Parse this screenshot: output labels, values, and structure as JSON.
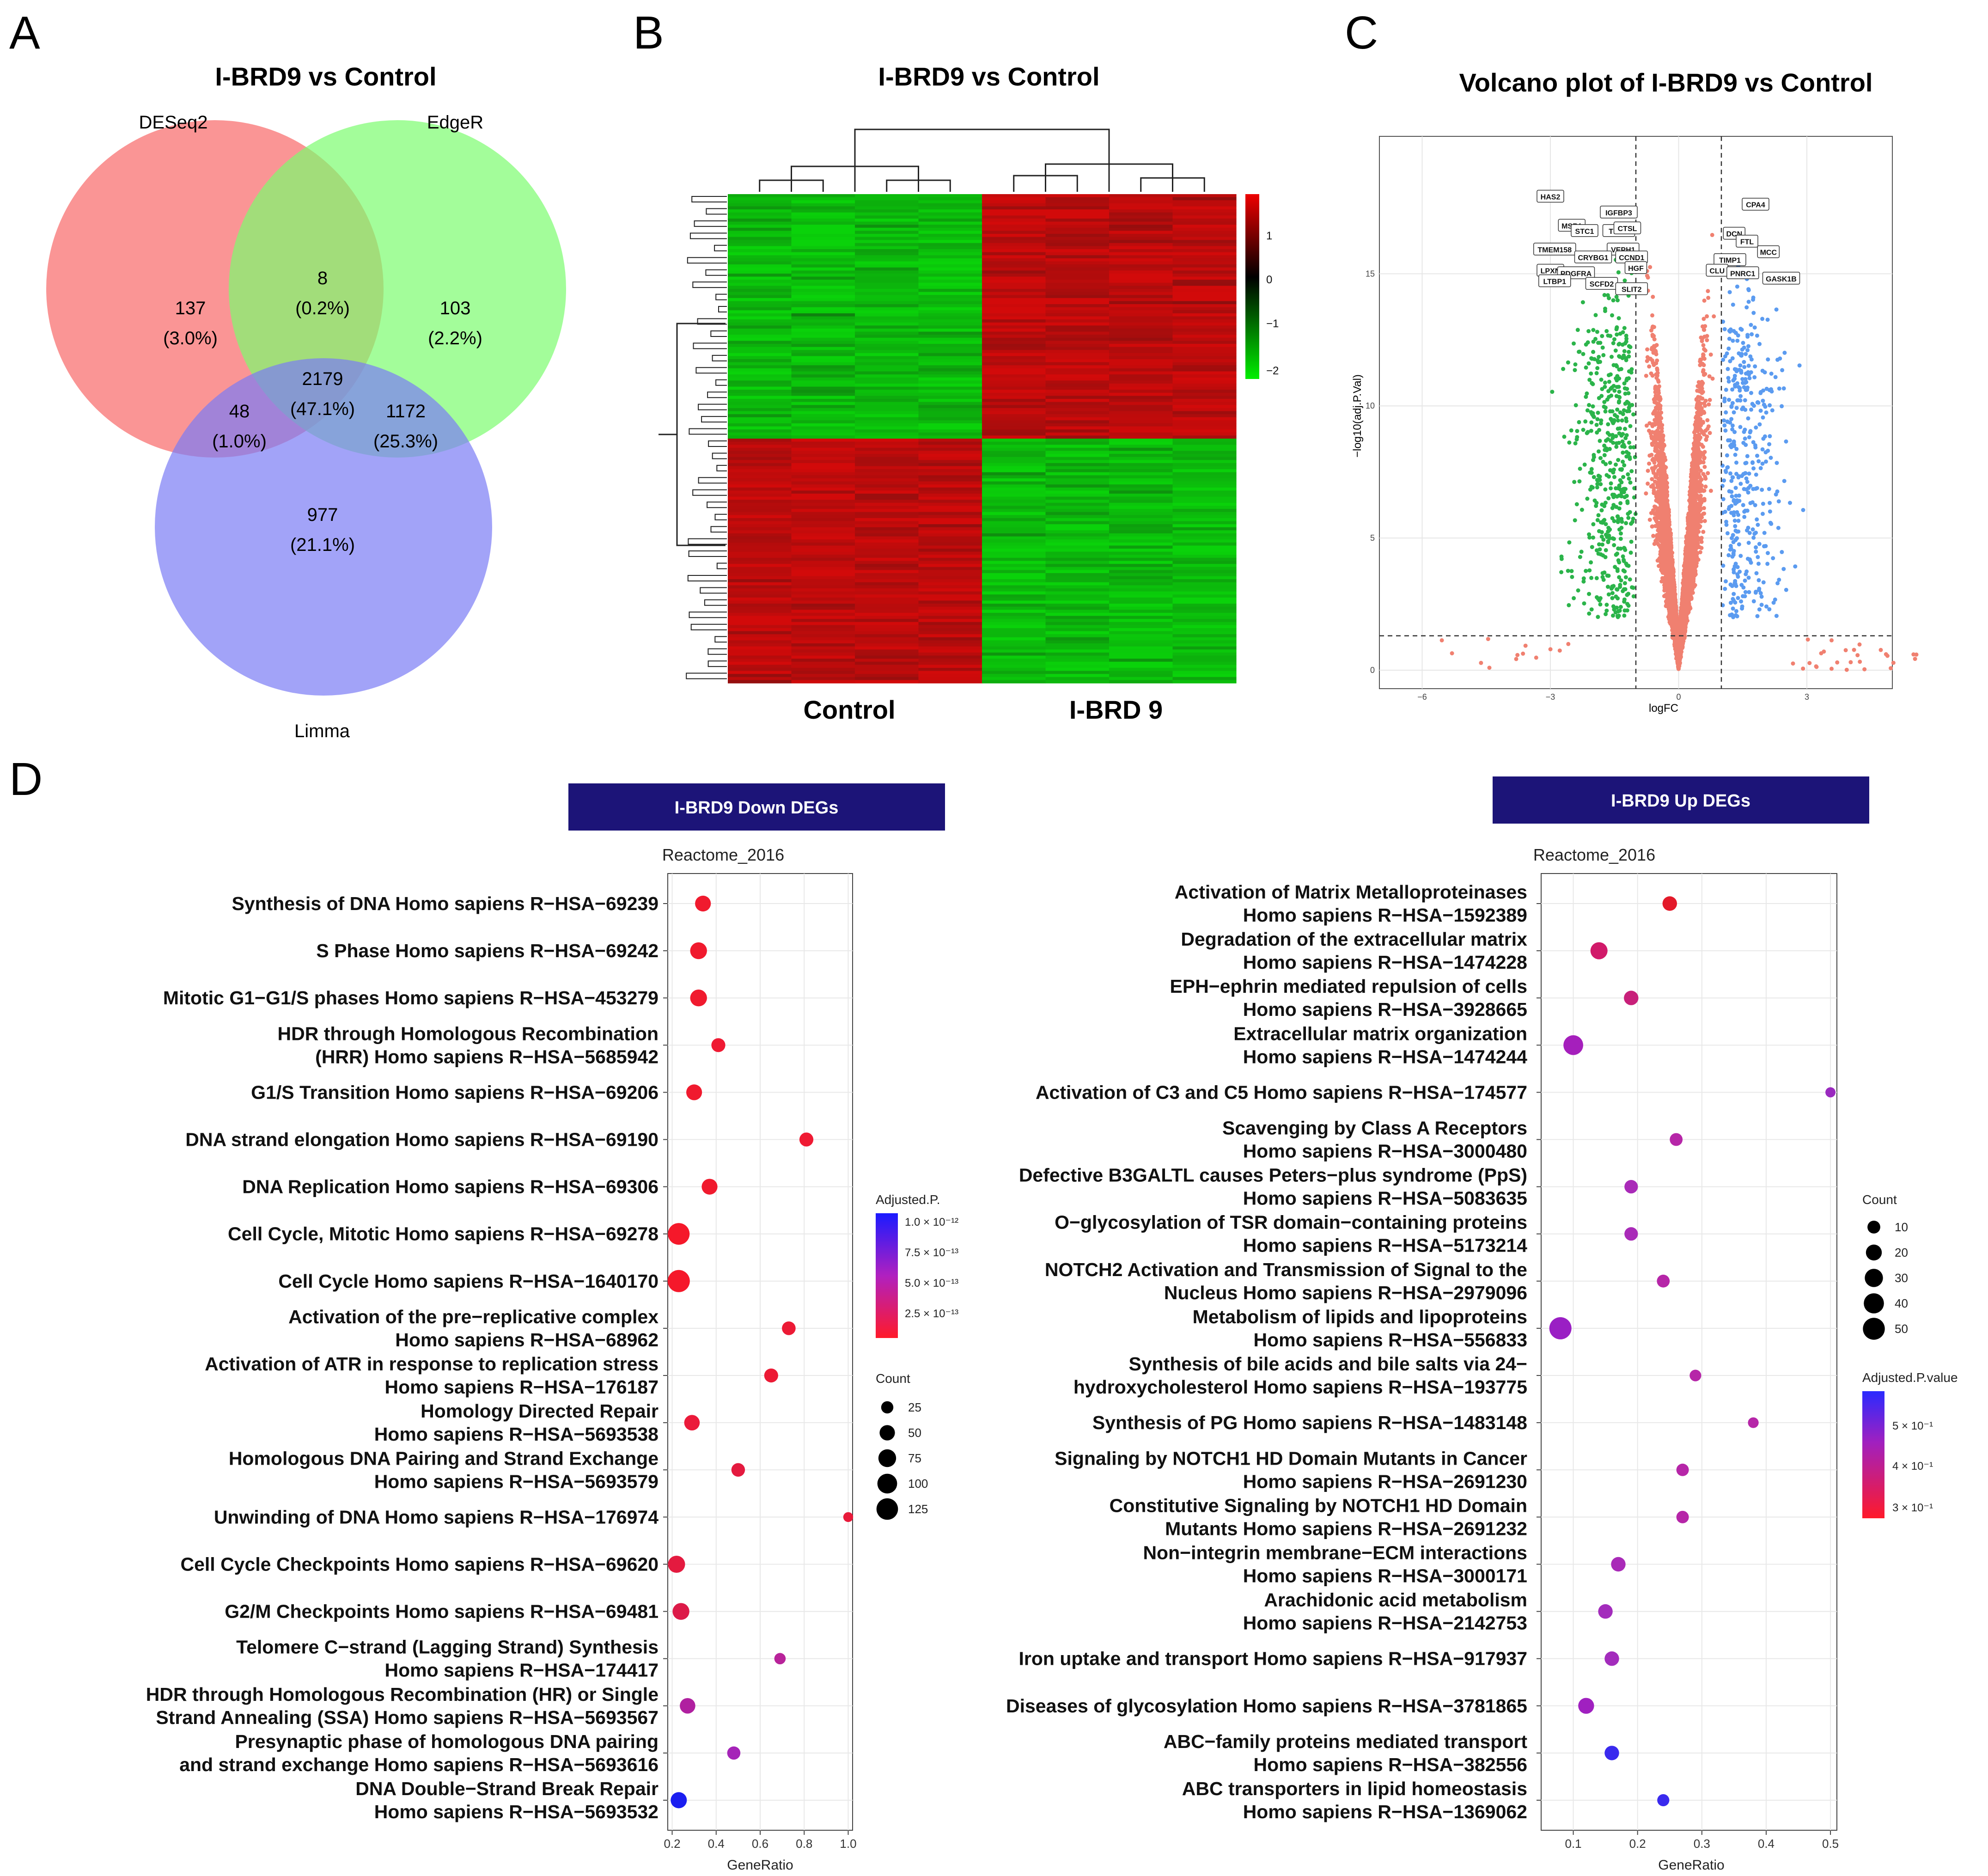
{
  "panel_letters": {
    "a": "A",
    "b": "B",
    "c": "C",
    "d": "D"
  },
  "colors": {
    "red": "#f44336",
    "green": "#2bb44a",
    "blue": "#5b9bf0",
    "salmon": "#f08070",
    "navy": "#1c1478",
    "purple": "#9a21c8",
    "magenta": "#d4177a"
  },
  "chart_data": [
    {
      "type": "venn",
      "title": "I-BRD9 vs Control",
      "sets": [
        {
          "name": "DESeq2",
          "color": "#f87171"
        },
        {
          "name": "EdgeR",
          "color": "#7cfc6f"
        },
        {
          "name": "Limma",
          "color": "#7b7cf5"
        }
      ],
      "regions": [
        {
          "sets": [
            "DESeq2"
          ],
          "count": "137",
          "pct": "(3.0%)"
        },
        {
          "sets": [
            "EdgeR"
          ],
          "count": "103",
          "pct": "(2.2%)"
        },
        {
          "sets": [
            "DESeq2",
            "EdgeR"
          ],
          "count": "8",
          "pct": "(0.2%)"
        },
        {
          "sets": [
            "DESeq2",
            "EdgeR",
            "Limma"
          ],
          "count": "2179",
          "pct": "(47.1%)"
        },
        {
          "sets": [
            "DESeq2",
            "Limma"
          ],
          "count": "48",
          "pct": "(1.0%)"
        },
        {
          "sets": [
            "EdgeR",
            "Limma"
          ],
          "count": "1172",
          "pct": "(25.3%)"
        },
        {
          "sets": [
            "Limma"
          ],
          "count": "977",
          "pct": "(21.1%)"
        }
      ]
    },
    {
      "type": "heatmap",
      "title": "I-BRD9 vs Control",
      "groups": [
        "Control",
        "I-BRD 9"
      ],
      "samples_per_group": 4,
      "clusters": [
        "up in I-BRD9",
        "down in I-BRD9"
      ],
      "color_scale": {
        "ticks": [
          "1",
          "0",
          "−1",
          "−2"
        ],
        "low": "#00ee00",
        "mid": "#000000",
        "high": "#ee0000"
      }
    },
    {
      "type": "scatter",
      "title": "Volcano plot of I-BRD9 vs Control",
      "xlabel": "logFC",
      "ylabel": "−log10(adj.P.Val)",
      "xlim": [
        -7,
        5
      ],
      "ylim": [
        -0.7,
        20.2
      ],
      "xticks": [
        "−6",
        "−3",
        "0",
        "3"
      ],
      "yticks": [
        "0",
        "5",
        "10",
        "15"
      ],
      "thresholds": {
        "logfc": [
          -1,
          1
        ],
        "neglog10p": 1.3
      },
      "labels": [
        {
          "text": "HAS2",
          "x": -3.0,
          "y": 17.9
        },
        {
          "text": "IGFBP3",
          "x": -1.4,
          "y": 17.3
        },
        {
          "text": "MSR1",
          "x": -2.5,
          "y": 16.8
        },
        {
          "text": "STC1",
          "x": -2.2,
          "y": 16.6
        },
        {
          "text": "TFPI2",
          "x": -1.4,
          "y": 16.6
        },
        {
          "text": "CTSL",
          "x": -1.2,
          "y": 16.7
        },
        {
          "text": "DCN",
          "x": 1.3,
          "y": 16.5
        },
        {
          "text": "FTL",
          "x": 1.6,
          "y": 16.2
        },
        {
          "text": "CPA4",
          "x": 1.8,
          "y": 17.6
        },
        {
          "text": "VEPH1",
          "x": -1.3,
          "y": 15.9
        },
        {
          "text": "TMEM158",
          "x": -2.9,
          "y": 15.9
        },
        {
          "text": "CRYBG1",
          "x": -2.0,
          "y": 15.6
        },
        {
          "text": "CCND1",
          "x": -1.1,
          "y": 15.6
        },
        {
          "text": "TIMP1",
          "x": 1.2,
          "y": 15.5
        },
        {
          "text": "MCC",
          "x": 2.1,
          "y": 15.8
        },
        {
          "text": "HGF",
          "x": -1.0,
          "y": 15.2
        },
        {
          "text": "LPXN",
          "x": -3.0,
          "y": 15.1
        },
        {
          "text": "PDGFRA",
          "x": -2.4,
          "y": 15.0
        },
        {
          "text": "CLU",
          "x": 0.9,
          "y": 15.1
        },
        {
          "text": "PNRC1",
          "x": 1.5,
          "y": 15.0
        },
        {
          "text": "GASK1B",
          "x": 2.4,
          "y": 14.8
        },
        {
          "text": "LTBP1",
          "x": -2.9,
          "y": 14.7
        },
        {
          "text": "SCFD2",
          "x": -1.8,
          "y": 14.6
        },
        {
          "text": "SLIT2",
          "x": -1.1,
          "y": 14.4
        }
      ]
    },
    {
      "type": "dot",
      "banner": "I-BRD9 Down DEGs",
      "title": "Reactome_2016",
      "xlabel": "GeneRatio",
      "xlim": [
        0.18,
        1.02
      ],
      "xticks": [
        0.2,
        0.4,
        0.6,
        0.8,
        1.0
      ],
      "xtick_labels": [
        "0.2",
        "0.4",
        "0.6",
        "0.8",
        "1.0"
      ],
      "color_legend": {
        "title": "Adjusted.P.",
        "ticks": [
          "1.0 × 10⁻¹²",
          "7.5 × 10⁻¹³",
          "5.0 × 10⁻¹³",
          "2.5 × 10⁻¹³"
        ]
      },
      "size_legend": {
        "title": "Count",
        "values": [
          25,
          50,
          75,
          100,
          125
        ]
      },
      "terms": [
        {
          "lines": [
            "Synthesis of DNA Homo sapiens R−HSA−69239"
          ],
          "x": 0.34,
          "count": 55,
          "color": "#f01a2e"
        },
        {
          "lines": [
            "S Phase Homo sapiens R−HSA−69242"
          ],
          "x": 0.32,
          "count": 65,
          "color": "#f01a2e"
        },
        {
          "lines": [
            "Mitotic G1−G1/S phases Homo sapiens R−HSA−453279"
          ],
          "x": 0.32,
          "count": 65,
          "color": "#f01a2e"
        },
        {
          "lines": [
            "HDR through Homologous Recombination",
            "(HRR) Homo sapiens R−HSA−5685942"
          ],
          "x": 0.41,
          "count": 38,
          "color": "#ef1a33"
        },
        {
          "lines": [
            "G1/S Transition Homo sapiens R−HSA−69206"
          ],
          "x": 0.3,
          "count": 55,
          "color": "#f01a2e"
        },
        {
          "lines": [
            "DNA strand elongation Homo sapiens R−HSA−69190"
          ],
          "x": 0.81,
          "count": 38,
          "color": "#ef1a33"
        },
        {
          "lines": [
            "DNA Replication Homo sapiens R−HSA−69306"
          ],
          "x": 0.37,
          "count": 55,
          "color": "#f01a2e"
        },
        {
          "lines": [
            "Cell Cycle, Mitotic Homo sapiens R−HSA−69278"
          ],
          "x": 0.23,
          "count": 128,
          "color": "#f5182a"
        },
        {
          "lines": [
            "Cell Cycle Homo sapiens R−HSA−1640170"
          ],
          "x": 0.23,
          "count": 135,
          "color": "#f5182a"
        },
        {
          "lines": [
            "Activation of the pre−replicative complex",
            "Homo sapiens R−HSA−68962"
          ],
          "x": 0.73,
          "count": 36,
          "color": "#ec1a35"
        },
        {
          "lines": [
            "Activation of ATR in response to replication stress",
            "Homo sapiens R−HSA−176187"
          ],
          "x": 0.65,
          "count": 38,
          "color": "#ec1a35"
        },
        {
          "lines": [
            "Homology Directed Repair",
            "Homo sapiens R−HSA−5693538"
          ],
          "x": 0.29,
          "count": 52,
          "color": "#eb1a3a"
        },
        {
          "lines": [
            "Homologous DNA Pairing and Strand Exchange",
            "Homo sapiens R−HSA−5693579"
          ],
          "x": 0.5,
          "count": 35,
          "color": "#e41a3f"
        },
        {
          "lines": [
            "Unwinding of DNA Homo sapiens R−HSA−176974"
          ],
          "x": 1.0,
          "count": 12,
          "color": "#e81a3a"
        },
        {
          "lines": [
            "Cell Cycle Checkpoints Homo sapiens R−HSA−69620"
          ],
          "x": 0.22,
          "count": 68,
          "color": "#e41a3f"
        },
        {
          "lines": [
            "G2/M Checkpoints Homo sapiens R−HSA−69481"
          ],
          "x": 0.24,
          "count": 65,
          "color": "#dc1a48"
        },
        {
          "lines": [
            "Telomere C−strand (Lagging Strand) Synthesis",
            "Homo sapiens R−HSA−174417"
          ],
          "x": 0.69,
          "count": 20,
          "color": "#b8239a"
        },
        {
          "lines": [
            "HDR through Homologous Recombination (HR) or Single",
            "Strand Annealing (SSA) Homo sapiens R−HSA−5693567"
          ],
          "x": 0.27,
          "count": 52,
          "color": "#b020a0"
        },
        {
          "lines": [
            "Presynaptic phase of homologous DNA pairing",
            "and strand exchange Homo sapiens R−HSA−5693616"
          ],
          "x": 0.48,
          "count": 32,
          "color": "#a524b8"
        },
        {
          "lines": [
            "DNA Double−Strand Break Repair",
            "Homo sapiens R−HSA−5693532"
          ],
          "x": 0.23,
          "count": 58,
          "color": "#1a1ef0"
        }
      ]
    },
    {
      "type": "dot",
      "banner": "I-BRD9 Up DEGs",
      "title": "Reactome_2016",
      "xlabel": "GeneRatio",
      "xlim": [
        0.05,
        0.51
      ],
      "xticks": [
        0.1,
        0.2,
        0.3,
        0.4,
        0.5
      ],
      "xtick_labels": [
        "0.1",
        "0.2",
        "0.3",
        "0.4",
        "0.5"
      ],
      "color_legend": {
        "title": "Adjusted.P.value",
        "ticks": [
          "5 × 10⁻¹",
          "4 × 10⁻¹",
          "3 × 10⁻¹"
        ]
      },
      "size_legend": {
        "title": "Count",
        "values": [
          10,
          20,
          30,
          40,
          50
        ]
      },
      "terms": [
        {
          "lines": [
            "Activation of Matrix Metalloproteinases",
            "Homo sapiens R−HSA−1592389"
          ],
          "x": 0.25,
          "count": 15,
          "color": "#e31a2a"
        },
        {
          "lines": [
            "Degradation of the extracellular matrix",
            "Homo sapiens R−HSA−1474228"
          ],
          "x": 0.14,
          "count": 25,
          "color": "#d11a6a"
        },
        {
          "lines": [
            "EPH−ephrin mediated repulsion of cells",
            "Homo sapiens R−HSA−3928665"
          ],
          "x": 0.19,
          "count": 15,
          "color": "#c8207a"
        },
        {
          "lines": [
            "Extracellular matrix organization",
            "Homo sapiens R−HSA−1474244"
          ],
          "x": 0.1,
          "count": 38,
          "color": "#a51fbc"
        },
        {
          "lines": [
            "Activation of C3 and C5 Homo sapiens R−HSA−174577"
          ],
          "x": 0.5,
          "count": 4,
          "color": "#9a2abf"
        },
        {
          "lines": [
            "Scavenging by Class A Receptors",
            "Homo sapiens R−HSA−3000480"
          ],
          "x": 0.26,
          "count": 10,
          "color": "#b626a8"
        },
        {
          "lines": [
            "Defective B3GALTL causes Peters−plus syndrome (PpS)",
            "Homo sapiens R−HSA−5083635"
          ],
          "x": 0.19,
          "count": 12,
          "color": "#a92ab8"
        },
        {
          "lines": [
            "O−glycosylation of TSR domain−containing proteins",
            "Homo sapiens R−HSA−5173214"
          ],
          "x": 0.19,
          "count": 12,
          "color": "#a92ab8"
        },
        {
          "lines": [
            "NOTCH2 Activation and Transmission of Signal to the",
            "Nucleus Homo sapiens R−HSA−2979096"
          ],
          "x": 0.24,
          "count": 10,
          "color": "#b626a8"
        },
        {
          "lines": [
            "Metabolism of lipids and lipoproteins",
            "Homo sapiens R−HSA−556833"
          ],
          "x": 0.08,
          "count": 52,
          "color": "#9a1fc4"
        },
        {
          "lines": [
            "Synthesis of bile acids and bile salts via 24−",
            "hydroxycholesterol Homo sapiens R−HSA−193775"
          ],
          "x": 0.29,
          "count": 7,
          "color": "#b626a8"
        },
        {
          "lines": [
            "Synthesis of PG Homo sapiens R−HSA−1483148"
          ],
          "x": 0.38,
          "count": 5,
          "color": "#b626a8"
        },
        {
          "lines": [
            "Signaling by NOTCH1 HD Domain Mutants in Cancer",
            "Homo sapiens R−HSA−2691230"
          ],
          "x": 0.27,
          "count": 9,
          "color": "#b626a8"
        },
        {
          "lines": [
            "Constitutive Signaling by NOTCH1 HD Domain",
            "Mutants Homo sapiens R−HSA−2691232"
          ],
          "x": 0.27,
          "count": 9,
          "color": "#b626a8"
        },
        {
          "lines": [
            "Non−integrin membrane−ECM interactions",
            "Homo sapiens R−HSA−3000171"
          ],
          "x": 0.17,
          "count": 15,
          "color": "#a92ab8"
        },
        {
          "lines": [
            "Arachidonic acid metabolism",
            "Homo sapiens R−HSA−2142753"
          ],
          "x": 0.15,
          "count": 15,
          "color": "#a32cbc"
        },
        {
          "lines": [
            "Iron uptake and transport Homo sapiens R−HSA−917937"
          ],
          "x": 0.16,
          "count": 15,
          "color": "#a32cbc"
        },
        {
          "lines": [
            "Diseases of glycosylation Homo sapiens R−HSA−3781865"
          ],
          "x": 0.12,
          "count": 20,
          "color": "#a020c0"
        },
        {
          "lines": [
            "ABC−family proteins mediated transport",
            "Homo sapiens R−HSA−382556"
          ],
          "x": 0.16,
          "count": 15,
          "color": "#3a2aee"
        },
        {
          "lines": [
            "ABC transporters in lipid homeostasis",
            "Homo sapiens R−HSA−1369062"
          ],
          "x": 0.24,
          "count": 8,
          "color": "#3a2aee"
        }
      ]
    }
  ]
}
